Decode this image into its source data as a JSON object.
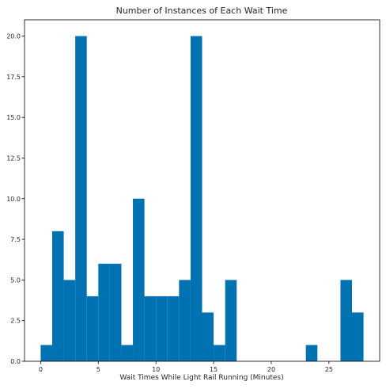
{
  "chart_data": {
    "type": "bar",
    "title": "Number of Instances of Each Wait Time",
    "xlabel": "Wait Times While Light Rail Running (Minutes)",
    "ylabel": "",
    "bar_color": "#0072b2",
    "xlim": [
      -1.4,
      29.4
    ],
    "ylim": [
      0,
      21
    ],
    "xticks": [
      0,
      5,
      10,
      15,
      20,
      25
    ],
    "yticks": [
      0.0,
      2.5,
      5.0,
      7.5,
      10.0,
      12.5,
      15.0,
      17.5,
      20.0
    ],
    "bins": [
      {
        "x0": 0.0,
        "x1": 1.0,
        "value": 1
      },
      {
        "x0": 1.0,
        "x1": 2.0,
        "value": 8
      },
      {
        "x0": 2.0,
        "x1": 3.0,
        "value": 5
      },
      {
        "x0": 3.0,
        "x1": 4.0,
        "value": 20
      },
      {
        "x0": 4.0,
        "x1": 5.0,
        "value": 4
      },
      {
        "x0": 5.0,
        "x1": 6.0,
        "value": 6
      },
      {
        "x0": 6.0,
        "x1": 7.0,
        "value": 6
      },
      {
        "x0": 7.0,
        "x1": 8.0,
        "value": 1
      },
      {
        "x0": 8.0,
        "x1": 9.0,
        "value": 10
      },
      {
        "x0": 9.0,
        "x1": 10.0,
        "value": 4
      },
      {
        "x0": 10.0,
        "x1": 11.0,
        "value": 4
      },
      {
        "x0": 11.0,
        "x1": 12.0,
        "value": 4
      },
      {
        "x0": 12.0,
        "x1": 13.0,
        "value": 5
      },
      {
        "x0": 13.0,
        "x1": 14.0,
        "value": 20
      },
      {
        "x0": 14.0,
        "x1": 15.0,
        "value": 3
      },
      {
        "x0": 15.0,
        "x1": 16.0,
        "value": 1
      },
      {
        "x0": 16.0,
        "x1": 17.0,
        "value": 5
      },
      {
        "x0": 23.0,
        "x1": 24.0,
        "value": 1
      },
      {
        "x0": 26.0,
        "x1": 27.0,
        "value": 5
      },
      {
        "x0": 27.0,
        "x1": 28.0,
        "value": 3
      }
    ]
  }
}
